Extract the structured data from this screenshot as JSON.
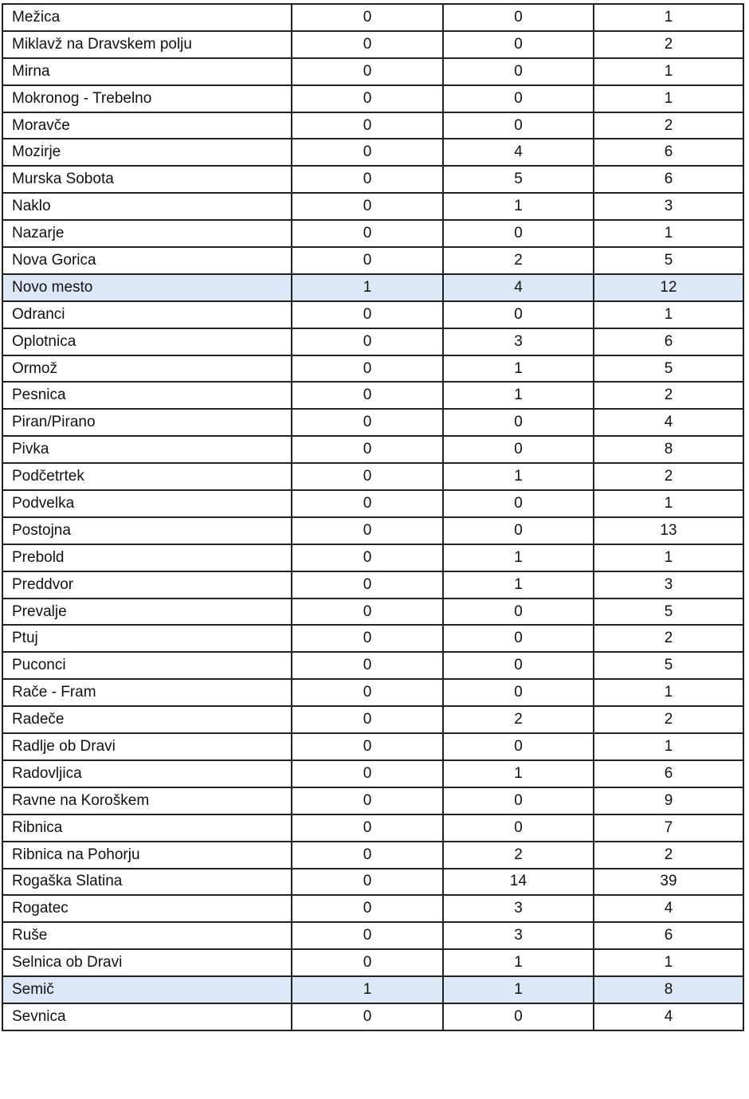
{
  "highlight_color": "#dce8f5",
  "rows": [
    {
      "name": "Mežica",
      "a": "0",
      "b": "0",
      "c": "1",
      "highlight": false
    },
    {
      "name": "Miklavž na Dravskem polju",
      "a": "0",
      "b": "0",
      "c": "2",
      "highlight": false
    },
    {
      "name": "Mirna",
      "a": "0",
      "b": "0",
      "c": "1",
      "highlight": false
    },
    {
      "name": "Mokronog - Trebelno",
      "a": "0",
      "b": "0",
      "c": "1",
      "highlight": false
    },
    {
      "name": "Moravče",
      "a": "0",
      "b": "0",
      "c": "2",
      "highlight": false
    },
    {
      "name": "Mozirje",
      "a": "0",
      "b": "4",
      "c": "6",
      "highlight": false
    },
    {
      "name": "Murska Sobota",
      "a": "0",
      "b": "5",
      "c": "6",
      "highlight": false
    },
    {
      "name": "Naklo",
      "a": "0",
      "b": "1",
      "c": "3",
      "highlight": false
    },
    {
      "name": "Nazarje",
      "a": "0",
      "b": "0",
      "c": "1",
      "highlight": false
    },
    {
      "name": "Nova Gorica",
      "a": "0",
      "b": "2",
      "c": "5",
      "highlight": false
    },
    {
      "name": "Novo mesto",
      "a": "1",
      "b": "4",
      "c": "12",
      "highlight": true
    },
    {
      "name": "Odranci",
      "a": "0",
      "b": "0",
      "c": "1",
      "highlight": false
    },
    {
      "name": "Oplotnica",
      "a": "0",
      "b": "3",
      "c": "6",
      "highlight": false
    },
    {
      "name": "Ormož",
      "a": "0",
      "b": "1",
      "c": "5",
      "highlight": false
    },
    {
      "name": "Pesnica",
      "a": "0",
      "b": "1",
      "c": "2",
      "highlight": false
    },
    {
      "name": "Piran/Pirano",
      "a": "0",
      "b": "0",
      "c": "4",
      "highlight": false
    },
    {
      "name": "Pivka",
      "a": "0",
      "b": "0",
      "c": "8",
      "highlight": false
    },
    {
      "name": "Podčetrtek",
      "a": "0",
      "b": "1",
      "c": "2",
      "highlight": false
    },
    {
      "name": "Podvelka",
      "a": "0",
      "b": "0",
      "c": "1",
      "highlight": false
    },
    {
      "name": "Postojna",
      "a": "0",
      "b": "0",
      "c": "13",
      "highlight": false
    },
    {
      "name": "Prebold",
      "a": "0",
      "b": "1",
      "c": "1",
      "highlight": false
    },
    {
      "name": "Preddvor",
      "a": "0",
      "b": "1",
      "c": "3",
      "highlight": false
    },
    {
      "name": "Prevalje",
      "a": "0",
      "b": "0",
      "c": "5",
      "highlight": false
    },
    {
      "name": "Ptuj",
      "a": "0",
      "b": "0",
      "c": "2",
      "highlight": false
    },
    {
      "name": "Puconci",
      "a": "0",
      "b": "0",
      "c": "5",
      "highlight": false
    },
    {
      "name": "Rače - Fram",
      "a": "0",
      "b": "0",
      "c": "1",
      "highlight": false
    },
    {
      "name": "Radeče",
      "a": "0",
      "b": "2",
      "c": "2",
      "highlight": false
    },
    {
      "name": "Radlje ob Dravi",
      "a": "0",
      "b": "0",
      "c": "1",
      "highlight": false
    },
    {
      "name": "Radovljica",
      "a": "0",
      "b": "1",
      "c": "6",
      "highlight": false
    },
    {
      "name": "Ravne na Koroškem",
      "a": "0",
      "b": "0",
      "c": "9",
      "highlight": false
    },
    {
      "name": "Ribnica",
      "a": "0",
      "b": "0",
      "c": "7",
      "highlight": false
    },
    {
      "name": "Ribnica na  Pohorju",
      "a": "0",
      "b": "2",
      "c": "2",
      "highlight": false
    },
    {
      "name": "Rogaška Slatina",
      "a": "0",
      "b": "14",
      "c": "39",
      "highlight": false
    },
    {
      "name": "Rogatec",
      "a": "0",
      "b": "3",
      "c": "4",
      "highlight": false
    },
    {
      "name": "Ruše",
      "a": "0",
      "b": "3",
      "c": "6",
      "highlight": false
    },
    {
      "name": "Selnica ob Dravi",
      "a": "0",
      "b": "1",
      "c": "1",
      "highlight": false
    },
    {
      "name": "Semič",
      "a": "1",
      "b": "1",
      "c": "8",
      "highlight": true
    },
    {
      "name": "Sevnica",
      "a": "0",
      "b": "0",
      "c": "4",
      "highlight": false
    }
  ]
}
